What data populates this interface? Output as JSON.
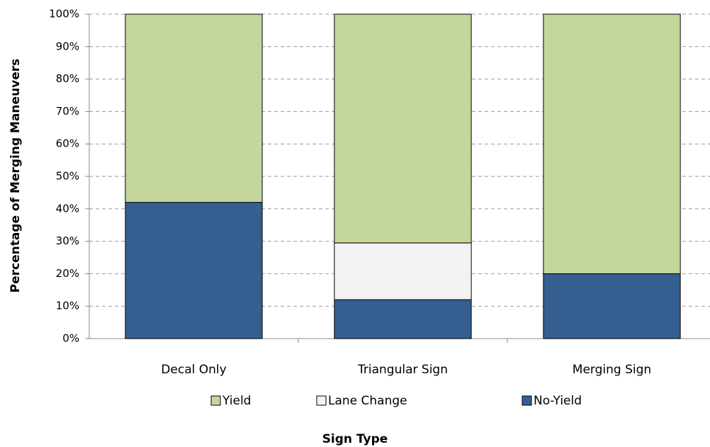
{
  "chart_data": {
    "type": "stacked_bar",
    "x_label": "Sign Type",
    "y_label": "Percentage of Merging Maneuvers",
    "categories": [
      "Decal Only",
      "Triangular Sign",
      "Merging Sign"
    ],
    "series": [
      {
        "name": "No-Yield",
        "color": "#355f91",
        "values": [
          42,
          12,
          20
        ]
      },
      {
        "name": "Lane Change",
        "color": "#f2f2f2",
        "values": [
          0,
          17.5,
          0
        ]
      },
      {
        "name": "Yield",
        "color": "#c3d69b",
        "values": [
          58,
          70.5,
          80
        ]
      }
    ],
    "legend_order": [
      "Yield",
      "Lane Change",
      "No-Yield"
    ],
    "ylim": [
      0,
      100
    ],
    "yticks": [
      {
        "value": 0,
        "label": "0%"
      },
      {
        "value": 10,
        "label": "10%"
      },
      {
        "value": 20,
        "label": "20%"
      },
      {
        "value": 30,
        "label": "30%"
      },
      {
        "value": 40,
        "label": "40%"
      },
      {
        "value": 50,
        "label": "50%"
      },
      {
        "value": 60,
        "label": "60%"
      },
      {
        "value": 70,
        "label": "70%"
      },
      {
        "value": 80,
        "label": "80%"
      },
      {
        "value": 90,
        "label": "90%"
      },
      {
        "value": 100,
        "label": "100%"
      }
    ],
    "grid": true,
    "legend": "bottom"
  }
}
